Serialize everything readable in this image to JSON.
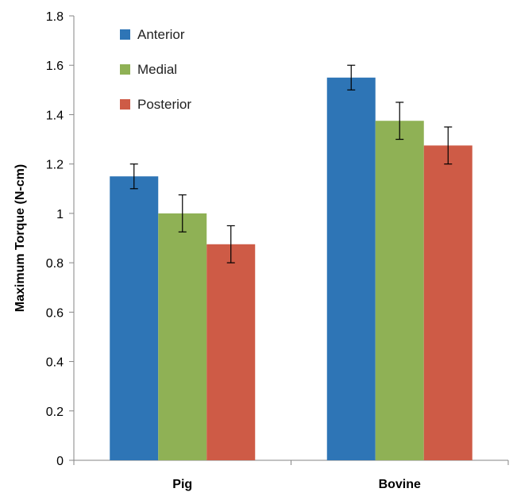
{
  "chart_data": {
    "type": "bar",
    "categories": [
      "Pig",
      "Bovine"
    ],
    "series": [
      {
        "name": "Anterior",
        "color": "#2E75B6",
        "values": [
          1.15,
          1.55
        ],
        "errors": [
          0.05,
          0.05
        ]
      },
      {
        "name": "Medial",
        "color": "#8FB155",
        "values": [
          1.0,
          1.375
        ],
        "errors": [
          0.075,
          0.075
        ]
      },
      {
        "name": "Posterior",
        "color": "#CE5B46",
        "values": [
          0.875,
          1.275
        ],
        "errors": [
          0.075,
          0.075
        ]
      }
    ],
    "ylabel": "Maximum Torque (N-cm)",
    "xlabel": "",
    "ylim": [
      0,
      1.8
    ],
    "yticks": [
      "0",
      "0.2",
      "0.4",
      "0.6",
      "0.8",
      "1",
      "1.2",
      "1.4",
      "1.6",
      "1.8"
    ],
    "grid": false,
    "legend_position": "top-left"
  }
}
